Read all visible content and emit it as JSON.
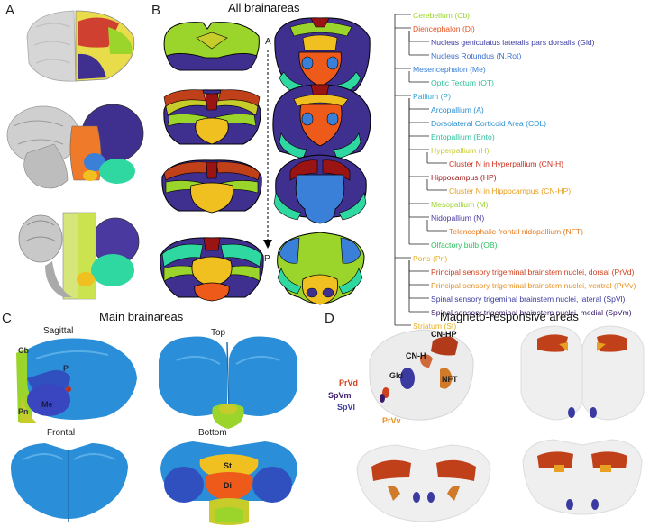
{
  "panels": {
    "A": "A",
    "B": "B",
    "C": "C",
    "D": "D"
  },
  "panel_b": {
    "title": "All brainareas",
    "axis_top": "A",
    "axis_bottom": "P"
  },
  "panel_c": {
    "title": "Main brainareas",
    "views": [
      "Sagittal",
      "Top",
      "Frontal",
      "Bottom"
    ],
    "sagittal_labels": [
      "Cb",
      "P",
      "Me",
      "Pn"
    ],
    "bottom_labels": [
      "St",
      "Di"
    ]
  },
  "panel_d": {
    "title": "Magneto-responsive areas",
    "labels": [
      "CN-HP",
      "CN-H",
      "Gld",
      "NFT",
      "PrVd",
      "SpVm",
      "SpVl",
      "PrVv"
    ]
  },
  "tree": [
    {
      "label": "Cerebellum (Cb)",
      "color": "#9bd42a",
      "level": 0
    },
    {
      "label": "Diencephalon (Di)",
      "color": "#e6501e",
      "level": 0
    },
    {
      "label": "Nucleus geniculatus lateralis pars dorsalis (Gld)",
      "color": "#3a3aa0",
      "level": 1
    },
    {
      "label": "Nucleus Rotundus (N.Rot)",
      "color": "#3a6fd0",
      "level": 1
    },
    {
      "label": "Mesencephalon (Me)",
      "color": "#3a7fd8",
      "level": 0
    },
    {
      "label": "Optic Tectum (OT)",
      "color": "#2fc09a",
      "level": 1
    },
    {
      "label": "Pallium (P)",
      "color": "#2aa6d8",
      "level": 0
    },
    {
      "label": "Arcopallium (A)",
      "color": "#2a8fd0",
      "level": 1
    },
    {
      "label": "Dorsolateral Corticoid Area (CDL)",
      "color": "#2a8fd0",
      "level": 1
    },
    {
      "label": "Entopallium (Ento)",
      "color": "#2fc0a0",
      "level": 1
    },
    {
      "label": "Hyperpallium (H)",
      "color": "#c8cc2a",
      "level": 1
    },
    {
      "label": "Cluster N in Hyperpallium (CN-H)",
      "color": "#d0301e",
      "level": 2
    },
    {
      "label": "Hippocampus (HP)",
      "color": "#a01818",
      "level": 1
    },
    {
      "label": "Cluster N in Hippocampus (CN-HP)",
      "color": "#e8a020",
      "level": 2
    },
    {
      "label": "Mesopallium (M)",
      "color": "#9bd42a",
      "level": 1
    },
    {
      "label": "Nidopallium (N)",
      "color": "#4a3aa0",
      "level": 1
    },
    {
      "label": "Telencephalic frontal nidopallium (NFT)",
      "color": "#e67a1e",
      "level": 2
    },
    {
      "label": "Olfactory bulb (OB)",
      "color": "#2fc060",
      "level": 1
    },
    {
      "label": "Pons (Pn)",
      "color": "#e8b020",
      "level": 0
    },
    {
      "label": "Principal sensory trigeminal brainstem nuclei, dorsal (PrVd)",
      "color": "#d0401e",
      "level": 1
    },
    {
      "label": "Principal sensory trigeminal brainstem nuclei, ventral (PrVv)",
      "color": "#e89020",
      "level": 1
    },
    {
      "label": "Spinal sensory trigeminal brainstem nuclei, lateral (SpVl)",
      "color": "#3a3aa0",
      "level": 1
    },
    {
      "label": "Spinal sensory trigeminal brainstem nuclei, medial (SpVm)",
      "color": "#3a1a6a",
      "level": 1
    },
    {
      "label": "Striatum (St)",
      "color": "#e8b020",
      "level": 0
    }
  ],
  "colors": {
    "mesopallium": "#9bd42a",
    "nidopallium": "#3f2f8f",
    "hyperpallium": "#c8cc2a",
    "hippocampus": "#9a1414",
    "striatum": "#f0c020",
    "diencephalon": "#ee5a1a",
    "mesencephalon": "#3a7fd8",
    "tectum": "#2fd8a0",
    "pallium_3d": "#2a8ed8",
    "cerebellum": "#9bd42a",
    "cn": "#c0401a",
    "nft": "#d07a2a"
  }
}
